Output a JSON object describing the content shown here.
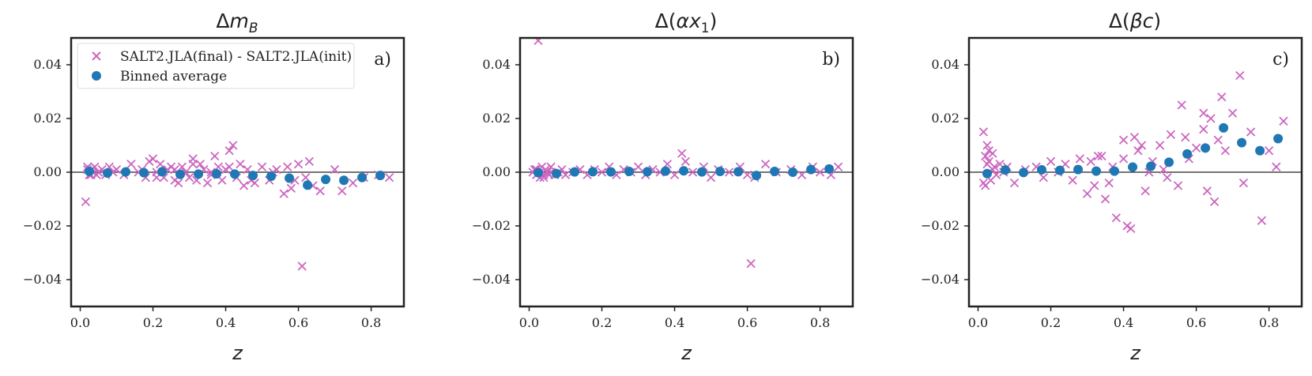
{
  "chart_data": [
    {
      "type": "scatter",
      "title": "Δm_B",
      "xlabel": "z",
      "ylabel": "",
      "panel_label": "a)",
      "xlim": [
        -0.025,
        0.89
      ],
      "ylim": [
        -0.05,
        0.05
      ],
      "xticks": [
        "0.0",
        "0.2",
        "0.4",
        "0.6",
        "0.8"
      ],
      "yticks": [
        "−0.04",
        "−0.02",
        "0.00",
        "0.02",
        "0.04"
      ],
      "legend": [
        "SALT2.JLA(final) - SALT2.JLA(init)",
        "Binned average"
      ],
      "legend_position": "top-left",
      "grid": false,
      "series": [
        {
          "name": "SALT2.JLA(final) - SALT2.JLA(init)",
          "marker": "x",
          "color": "#cc66c0",
          "x": [
            0.015,
            0.02,
            0.025,
            0.03,
            0.035,
            0.04,
            0.045,
            0.05,
            0.06,
            0.07,
            0.08,
            0.09,
            0.1,
            0.12,
            0.14,
            0.16,
            0.18,
            0.19,
            0.2,
            0.21,
            0.22,
            0.23,
            0.24,
            0.25,
            0.26,
            0.27,
            0.28,
            0.29,
            0.3,
            0.31,
            0.32,
            0.33,
            0.34,
            0.35,
            0.36,
            0.37,
            0.38,
            0.39,
            0.4,
            0.41,
            0.42,
            0.43,
            0.44,
            0.45,
            0.46,
            0.48,
            0.5,
            0.52,
            0.54,
            0.56,
            0.57,
            0.58,
            0.59,
            0.6,
            0.61,
            0.62,
            0.63,
            0.64,
            0.66,
            0.7,
            0.72,
            0.75,
            0.78,
            0.82,
            0.85,
            0.02,
            0.03,
            0.05,
            0.17,
            0.21,
            0.26,
            0.31,
            0.36,
            0.41,
            0.47,
            0.53
          ],
          "y": [
            -0.011,
            0.002,
            -0.001,
            0.001,
            0.0,
            0.002,
            -0.001,
            0.0,
            0.001,
            -0.001,
            0.002,
            0.0,
            0.001,
            -0.001,
            0.003,
            0.0,
            -0.002,
            0.004,
            0.005,
            0.0,
            0.003,
            -0.002,
            0.001,
            0.002,
            -0.003,
            -0.004,
            0.002,
            0.0,
            -0.002,
            0.005,
            -0.003,
            0.003,
            0.001,
            -0.004,
            0.0,
            0.006,
            0.002,
            -0.003,
            0.001,
            0.008,
            0.01,
            -0.002,
            0.003,
            -0.005,
            0.001,
            -0.004,
            0.002,
            -0.003,
            0.001,
            -0.008,
            0.002,
            -0.006,
            -0.003,
            0.003,
            -0.035,
            -0.002,
            0.004,
            -0.005,
            -0.007,
            0.001,
            -0.007,
            -0.004,
            -0.002,
            -0.001,
            -0.002,
            0.001,
            -0.001,
            0.0,
            0.001,
            -0.002,
            0.001,
            0.003,
            -0.001,
            0.002,
            -0.003,
            0.0
          ]
        },
        {
          "name": "Binned average",
          "marker": "o",
          "color": "#1f78b4",
          "x": [
            0.025,
            0.075,
            0.125,
            0.175,
            0.225,
            0.275,
            0.325,
            0.375,
            0.425,
            0.475,
            0.525,
            0.575,
            0.625,
            0.675,
            0.725,
            0.775,
            0.825
          ],
          "y": [
            0.0003,
            -0.0003,
            0.0001,
            -0.0002,
            0.0002,
            -0.0008,
            -0.0007,
            -0.0006,
            -0.0007,
            -0.0012,
            -0.0015,
            -0.0022,
            -0.0048,
            -0.0027,
            -0.003,
            -0.002,
            -0.0012
          ]
        }
      ]
    },
    {
      "type": "scatter",
      "title": "Δ(αx_1)",
      "xlabel": "z",
      "ylabel": "",
      "panel_label": "b)",
      "xlim": [
        -0.025,
        0.89
      ],
      "ylim": [
        -0.05,
        0.05
      ],
      "xticks": [
        "0.0",
        "0.2",
        "0.4",
        "0.6",
        "0.8"
      ],
      "yticks": [
        "−0.04",
        "−0.02",
        "0.00",
        "0.02",
        "0.04"
      ],
      "grid": false,
      "series": [
        {
          "name": "SALT2.JLA(final) - SALT2.JLA(init)",
          "marker": "x",
          "color": "#cc66c0",
          "x": [
            0.01,
            0.015,
            0.02,
            0.025,
            0.03,
            0.035,
            0.04,
            0.045,
            0.05,
            0.055,
            0.06,
            0.07,
            0.08,
            0.09,
            0.1,
            0.12,
            0.14,
            0.16,
            0.18,
            0.2,
            0.22,
            0.24,
            0.26,
            0.28,
            0.3,
            0.32,
            0.34,
            0.36,
            0.38,
            0.4,
            0.42,
            0.43,
            0.45,
            0.48,
            0.5,
            0.52,
            0.55,
            0.58,
            0.6,
            0.61,
            0.62,
            0.65,
            0.68,
            0.72,
            0.75,
            0.78,
            0.8,
            0.83,
            0.85,
            0.03,
            0.02,
            0.04,
            0.06,
            0.015
          ],
          "y": [
            0.0,
            0.001,
            -0.001,
            0.049,
            0.0,
            0.002,
            -0.002,
            0.001,
            0.0,
            -0.001,
            0.002,
            -0.001,
            0.0,
            0.001,
            -0.001,
            0.0,
            0.001,
            -0.001,
            0.001,
            0.0,
            0.002,
            -0.001,
            0.001,
            0.0,
            0.002,
            -0.001,
            0.001,
            0.0,
            0.003,
            -0.001,
            0.007,
            0.004,
            0.0,
            0.002,
            -0.002,
            0.001,
            0.0,
            0.002,
            -0.001,
            -0.034,
            -0.002,
            0.003,
            0.0,
            0.001,
            -0.001,
            0.002,
            0.0,
            -0.001,
            0.002,
            -0.002,
            0.001,
            -0.001,
            0.0,
            0.001
          ]
        },
        {
          "name": "Binned average",
          "marker": "o",
          "color": "#1f78b4",
          "x": [
            0.025,
            0.075,
            0.125,
            0.175,
            0.225,
            0.275,
            0.325,
            0.375,
            0.425,
            0.475,
            0.525,
            0.575,
            0.625,
            0.675,
            0.725,
            0.775,
            0.825
          ],
          "y": [
            -0.0002,
            -0.0005,
            0.0001,
            0.0002,
            0.0001,
            0.0003,
            0.0002,
            0.0004,
            0.0005,
            0.0001,
            0.0003,
            0.0002,
            -0.0012,
            0.0003,
            0.0,
            0.001,
            0.0012
          ]
        }
      ]
    },
    {
      "type": "scatter",
      "title": "Δ(βc)",
      "xlabel": "z",
      "ylabel": "",
      "panel_label": "c)",
      "xlim": [
        -0.025,
        0.89
      ],
      "ylim": [
        -0.05,
        0.05
      ],
      "xticks": [
        "0.0",
        "0.2",
        "0.4",
        "0.6",
        "0.8"
      ],
      "yticks": [
        "−0.04",
        "−0.02",
        "0.00",
        "0.02",
        "0.04"
      ],
      "grid": false,
      "series": [
        {
          "name": "SALT2.JLA(final) - SALT2.JLA(init)",
          "marker": "x",
          "color": "#cc66c0",
          "x": [
            0.015,
            0.02,
            0.025,
            0.03,
            0.035,
            0.04,
            0.045,
            0.05,
            0.06,
            0.07,
            0.08,
            0.1,
            0.13,
            0.16,
            0.18,
            0.2,
            0.22,
            0.24,
            0.26,
            0.28,
            0.3,
            0.31,
            0.32,
            0.34,
            0.36,
            0.37,
            0.38,
            0.4,
            0.41,
            0.42,
            0.43,
            0.44,
            0.45,
            0.46,
            0.47,
            0.48,
            0.5,
            0.52,
            0.53,
            0.55,
            0.56,
            0.57,
            0.58,
            0.6,
            0.62,
            0.63,
            0.64,
            0.65,
            0.66,
            0.67,
            0.68,
            0.7,
            0.72,
            0.73,
            0.75,
            0.78,
            0.8,
            0.82,
            0.84,
            0.02,
            0.03,
            0.015,
            0.025,
            0.04,
            0.33,
            0.35,
            0.51,
            0.62,
            0.4
          ],
          "y": [
            0.015,
            -0.005,
            0.01,
            0.004,
            -0.003,
            0.007,
            0.002,
            -0.001,
            0.003,
            0.0,
            0.002,
            -0.004,
            0.001,
            0.002,
            -0.002,
            0.004,
            0.0,
            0.003,
            -0.003,
            0.005,
            -0.008,
            0.004,
            -0.005,
            0.006,
            -0.004,
            0.002,
            -0.017,
            0.005,
            -0.02,
            -0.021,
            0.013,
            0.008,
            0.01,
            -0.007,
            0.0,
            0.004,
            0.01,
            -0.002,
            0.014,
            -0.005,
            0.025,
            0.013,
            0.005,
            0.009,
            0.022,
            -0.007,
            0.02,
            -0.011,
            0.012,
            0.028,
            0.008,
            0.022,
            0.036,
            -0.004,
            0.015,
            -0.018,
            0.008,
            0.002,
            0.019,
            0.006,
            0.008,
            -0.004,
            0.003,
            0.001,
            0.006,
            -0.01,
            0.001,
            0.016,
            0.012
          ],
          "note_dense_region": ""
        },
        {
          "name": "Binned average",
          "marker": "o",
          "color": "#1f78b4",
          "x": [
            0.025,
            0.075,
            0.125,
            0.175,
            0.225,
            0.275,
            0.325,
            0.375,
            0.425,
            0.475,
            0.525,
            0.575,
            0.625,
            0.675,
            0.725,
            0.775,
            0.825
          ],
          "y": [
            -0.0005,
            0.0008,
            -0.0001,
            0.0009,
            0.0007,
            0.001,
            0.0004,
            0.0004,
            0.0019,
            0.0022,
            0.0037,
            0.0068,
            0.009,
            0.0165,
            0.011,
            0.008,
            0.0125
          ]
        }
      ]
    }
  ]
}
